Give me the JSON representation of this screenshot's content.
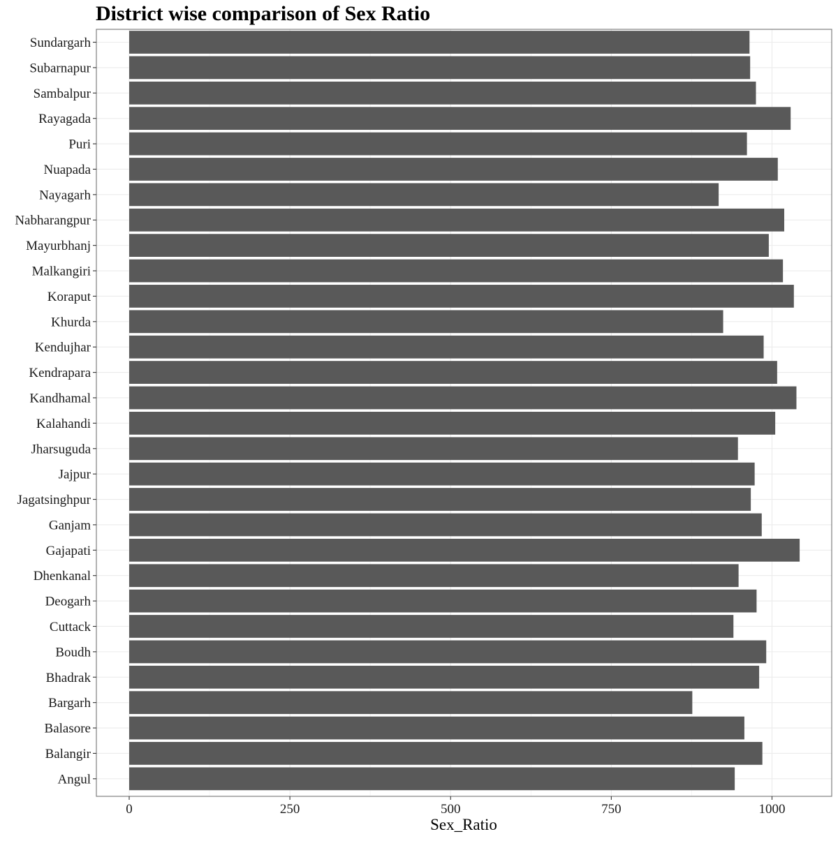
{
  "chart_data": {
    "type": "bar",
    "orientation": "horizontal",
    "title": "District wise comparison of Sex Ratio",
    "xlabel": "Sex_Ratio",
    "ylabel": "",
    "xlim": [
      0,
      1046
    ],
    "xticks": [
      0,
      250,
      500,
      750,
      1000
    ],
    "grid": true,
    "bar_color": "#595959",
    "categories": [
      "Sundargarh",
      "Subarnapur",
      "Sambalpur",
      "Rayagada",
      "Puri",
      "Nuapada",
      "Nayagarh",
      "Nabharangpur",
      "Mayurbhanj",
      "Malkangiri",
      "Koraput",
      "Khurda",
      "Kendujhar",
      "Kendrapara",
      "Kandhamal",
      "Kalahandi",
      "Jharsuguda",
      "Jajpur",
      "Jagatsinghpur",
      "Ganjam",
      "Gajapati",
      "Dhenkanal",
      "Deogarh",
      "Cuttack",
      "Boudh",
      "Bhadrak",
      "Bargarh",
      "Balasore",
      "Balangir",
      "Angul"
    ],
    "values": [
      965,
      966,
      975,
      1029,
      961,
      1009,
      917,
      1019,
      995,
      1017,
      1034,
      924,
      987,
      1008,
      1038,
      1005,
      947,
      973,
      967,
      984,
      1043,
      948,
      976,
      940,
      991,
      980,
      876,
      957,
      985,
      942
    ]
  }
}
